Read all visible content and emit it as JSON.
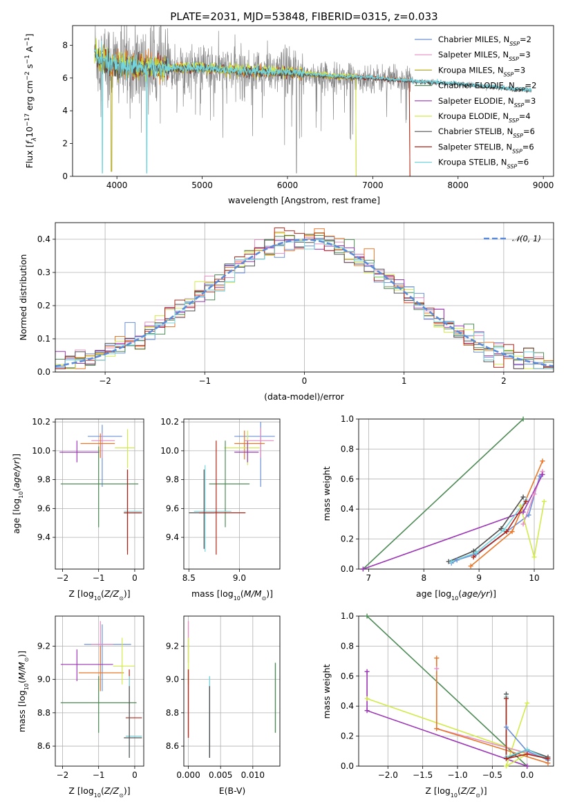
{
  "title": "PLATE=2031, MJD=53848, FIBERID=0315, z=0.033",
  "colors": {
    "chabrier_miles": "#6a8fd8",
    "salpeter_miles": "#e58cc0",
    "kroupa_miles": "#b5ac2a",
    "chabrier_elodie": "#4d8a55",
    "salpeter_elodie": "#9b34b5",
    "kroupa_elodie": "#d2ea4a",
    "chabrier_stelib": "#505050",
    "salpeter_stelib": "#b02418",
    "kroupa_stelib": "#74d4dd",
    "orange": "#e8772a",
    "gray": "#888888",
    "normal": "#5b8ad8",
    "grid": "#b0b0b0"
  },
  "legend": [
    {
      "key": "chabrier_miles",
      "base": "Chabrier MILES, N",
      "sub": "SSP",
      "val": "=2"
    },
    {
      "key": "salpeter_miles",
      "base": "Salpeter MILES, N",
      "sub": "SSP",
      "val": "=3"
    },
    {
      "key": "kroupa_miles",
      "base": "Kroupa MILES, N",
      "sub": "SSP",
      "val": "=3"
    },
    {
      "key": "chabrier_elodie",
      "base": "Chabrier ELODIE, N",
      "sub": "SSP",
      "val": "=2"
    },
    {
      "key": "salpeter_elodie",
      "base": "Salpeter ELODIE, N",
      "sub": "SSP",
      "val": "=3"
    },
    {
      "key": "kroupa_elodie",
      "base": "Kroupa ELODIE, N",
      "sub": "SSP",
      "val": "=4"
    },
    {
      "key": "chabrier_stelib",
      "base": "Chabrier STELIB, N",
      "sub": "SSP",
      "val": "=6"
    },
    {
      "key": "salpeter_stelib",
      "base": "Salpeter STELIB, N",
      "sub": "SSP",
      "val": "=6"
    },
    {
      "key": "kroupa_stelib",
      "base": "Kroupa STELIB, N",
      "sub": "SSP",
      "val": "=6"
    }
  ],
  "labels": {
    "spec_xlabel": "wavelength [Angstrom, rest frame]",
    "spec_ylabel_pre": "Flux [f",
    "spec_ylabel_post": "10",
    "hist_xlabel": "(data-model)/error",
    "hist_ylabel": "Normed distribution",
    "hist_legend": "𝒩(0, 1)",
    "age_label": "age  [log",
    "z_label": "Z [log",
    "mass_label": "mass [log",
    "mw_label": "mass weight",
    "ebv_label": "E(B-V)"
  },
  "chart_data": [
    {
      "type": "line",
      "name": "spectrum",
      "xlim": [
        3480,
        9120
      ],
      "ylim": [
        0,
        9.2
      ],
      "xticks": [
        4000,
        5000,
        6000,
        7000,
        8000,
        9000
      ],
      "yticks": [
        0,
        2,
        4,
        6,
        8
      ],
      "x_range": [
        3740,
        8860
      ],
      "continuum_y": [
        [
          3740,
          7.6
        ],
        [
          3800,
          7.1
        ],
        [
          3900,
          6.9
        ],
        [
          4000,
          6.8
        ],
        [
          4200,
          6.7
        ],
        [
          4500,
          6.6
        ],
        [
          5000,
          6.6
        ],
        [
          5500,
          6.4
        ],
        [
          6000,
          6.35
        ],
        [
          6500,
          6.1
        ],
        [
          7000,
          6.0
        ],
        [
          7500,
          5.8
        ],
        [
          8000,
          5.65
        ],
        [
          8500,
          5.4
        ],
        [
          8860,
          5.25
        ]
      ],
      "cutoffs": {
        "salpeter_stelib_end": 7430,
        "kroupa_miles_end": 6800,
        "orange_end": 7430,
        "gray_end": 7450
      }
    },
    {
      "type": "line",
      "name": "residual_histogram",
      "xlim": [
        -2.5,
        2.5
      ],
      "ylim": [
        0,
        0.45
      ],
      "xticks": [
        -2,
        -1,
        0,
        1,
        2
      ],
      "yticks": [
        0.0,
        0.1,
        0.2,
        0.3,
        0.4
      ],
      "bin_width": 0.1
    },
    {
      "type": "scatter",
      "name": "age_vs_Z",
      "xlim": [
        -2.2,
        0.25
      ],
      "ylim": [
        9.18,
        10.22
      ],
      "xticks": [
        -2,
        -1,
        0
      ],
      "yticks": [
        9.4,
        9.6,
        9.8,
        10.0,
        10.2
      ],
      "points": [
        {
          "c": "chabrier_miles",
          "x": -0.9,
          "y": 10.1,
          "xe": [
            -1.3,
            -0.35
          ],
          "ye": [
            9.75,
            10.18
          ]
        },
        {
          "c": "salpeter_miles",
          "x": -0.9,
          "y": 10.07,
          "xe": [
            -1.2,
            -0.55
          ],
          "ye": [
            9.95,
            10.12
          ]
        },
        {
          "c": "orange",
          "x": -0.95,
          "y": 10.05,
          "xe": [
            -1.5,
            -0.55
          ],
          "ye": [
            9.95,
            10.12
          ]
        },
        {
          "c": "kroupa_elodie",
          "x": -0.2,
          "y": 10.02,
          "xe": [
            -0.55,
            0.0
          ],
          "ye": [
            9.88,
            10.15
          ]
        },
        {
          "c": "salpeter_elodie",
          "x": -1.6,
          "y": 9.99,
          "xe": [
            -2.08,
            -0.98
          ],
          "ye": [
            9.92,
            10.07
          ]
        },
        {
          "c": "chabrier_elodie",
          "x": -1.0,
          "y": 9.77,
          "xe": [
            -2.05,
            0.1
          ],
          "ye": [
            9.47,
            10.03
          ]
        },
        {
          "c": "kroupa_stelib",
          "x": -0.2,
          "y": 9.58,
          "xe": [
            -0.3,
            0.2
          ],
          "ye": [
            9.3,
            9.86
          ]
        },
        {
          "c": "chabrier_stelib",
          "x": -0.2,
          "y": 9.57,
          "xe": [
            -0.3,
            0.2
          ],
          "ye": [
            9.31,
            9.87
          ]
        },
        {
          "c": "salpeter_stelib",
          "x": -0.2,
          "y": 9.57,
          "xe": [
            -0.3,
            0.2
          ],
          "ye": [
            9.28,
            9.87
          ]
        }
      ]
    },
    {
      "type": "scatter",
      "name": "age_vs_mass",
      "xlim": [
        8.45,
        9.4
      ],
      "ylim": [
        9.18,
        10.22
      ],
      "xticks": [
        8.5,
        9.0
      ],
      "yticks": [
        9.4,
        9.6,
        9.8,
        10.0,
        10.2
      ],
      "points": [
        {
          "c": "chabrier_miles",
          "x": 9.21,
          "y": 10.1,
          "xe": [
            8.95,
            9.35
          ],
          "ye": [
            9.75,
            10.2
          ]
        },
        {
          "c": "salpeter_miles",
          "x": 9.21,
          "y": 10.07,
          "xe": [
            9.05,
            9.34
          ],
          "ye": [
            9.95,
            10.16
          ]
        },
        {
          "c": "orange",
          "x": 9.05,
          "y": 10.05,
          "xe": [
            8.95,
            9.25
          ],
          "ye": [
            9.94,
            10.14
          ]
        },
        {
          "c": "kroupa_elodie",
          "x": 9.08,
          "y": 10.02,
          "xe": [
            8.85,
            9.2
          ],
          "ye": [
            9.9,
            10.14
          ]
        },
        {
          "c": "salpeter_elodie",
          "x": 9.08,
          "y": 9.99,
          "xe": [
            8.95,
            9.19
          ],
          "ye": [
            9.92,
            10.07
          ]
        },
        {
          "c": "chabrier_elodie",
          "x": 8.86,
          "y": 9.77,
          "xe": [
            8.7,
            9.1
          ],
          "ye": [
            9.47,
            10.07
          ]
        },
        {
          "c": "kroupa_stelib",
          "x": 8.66,
          "y": 9.58,
          "xe": [
            8.55,
            8.92
          ],
          "ye": [
            9.3,
            9.9
          ]
        },
        {
          "c": "chabrier_stelib",
          "x": 8.65,
          "y": 9.57,
          "xe": [
            8.5,
            8.75
          ],
          "ye": [
            9.32,
            9.87
          ]
        },
        {
          "c": "salpeter_stelib",
          "x": 8.77,
          "y": 9.57,
          "xe": [
            8.6,
            9.06
          ],
          "ye": [
            9.28,
            10.07
          ]
        }
      ]
    },
    {
      "type": "line",
      "name": "mass_weight_vs_age",
      "xlim": [
        6.82,
        10.35
      ],
      "ylim": [
        0,
        1
      ],
      "xticks": [
        7,
        8,
        9,
        10
      ],
      "yticks": [
        0.0,
        0.2,
        0.4,
        0.6,
        0.8,
        1.0
      ],
      "series": [
        {
          "c": "chabrier_miles",
          "x": [
            8.5,
            8.6,
            8.95,
            9.5,
            9.9,
            10.1
          ],
          "y": [
            0.04,
            0.06,
            0.1,
            0.25,
            0.36,
            0.62
          ]
        },
        {
          "c": "salpeter_miles",
          "x": [
            9.8,
            10.0,
            10.15
          ],
          "y": [
            0.3,
            0.5,
            0.65
          ]
        },
        {
          "c": "orange",
          "x": [
            8.85,
            9.6,
            10.15
          ],
          "y": [
            0.02,
            0.25,
            0.72
          ]
        },
        {
          "c": "chabrier_elodie",
          "x": [
            6.9,
            9.8
          ],
          "y": [
            0.0,
            1.0
          ]
        },
        {
          "c": "salpeter_elodie",
          "x": [
            6.9,
            9.8,
            10.15
          ],
          "y": [
            0.0,
            0.38,
            0.63
          ]
        },
        {
          "c": "kroupa_elodie",
          "x": [
            9.75,
            10.0,
            10.18
          ],
          "y": [
            0.42,
            0.08,
            0.45
          ]
        },
        {
          "c": "chabrier_stelib",
          "x": [
            8.45,
            8.9,
            9.4,
            9.8
          ],
          "y": [
            0.05,
            0.12,
            0.27,
            0.48
          ]
        },
        {
          "c": "kroupa_stelib",
          "x": [
            8.5,
            8.95,
            9.45,
            9.85
          ],
          "y": [
            0.05,
            0.11,
            0.26,
            0.46
          ]
        },
        {
          "c": "salpeter_stelib",
          "x": [
            8.9,
            9.5,
            9.85
          ],
          "y": [
            0.08,
            0.25,
            0.45
          ]
        }
      ]
    },
    {
      "type": "scatter",
      "name": "mass_vs_Z",
      "xlim": [
        -2.2,
        0.25
      ],
      "ylim": [
        8.48,
        9.38
      ],
      "xticks": [
        -2,
        -1,
        0
      ],
      "yticks": [
        8.6,
        8.8,
        9.0,
        9.2
      ],
      "points": [
        {
          "c": "chabrier_miles",
          "x": -0.9,
          "y": 9.21,
          "xe": [
            -1.4,
            -0.1
          ],
          "ye": [
            8.93,
            9.33
          ]
        },
        {
          "c": "salpeter_miles",
          "x": -0.95,
          "y": 9.21,
          "xe": [
            -1.2,
            -0.6
          ],
          "ye": [
            9.1,
            9.35
          ]
        },
        {
          "c": "orange",
          "x": -0.95,
          "y": 9.04,
          "xe": [
            -1.55,
            -0.3
          ],
          "ye": [
            8.93,
            9.2
          ]
        },
        {
          "c": "salpeter_elodie",
          "x": -1.6,
          "y": 9.09,
          "xe": [
            -2.05,
            -0.6
          ],
          "ye": [
            8.99,
            9.18
          ]
        },
        {
          "c": "kroupa_elodie",
          "x": -0.35,
          "y": 9.08,
          "xe": [
            -0.6,
            0.0
          ],
          "ye": [
            8.97,
            9.25
          ]
        },
        {
          "c": "chabrier_elodie",
          "x": -1.0,
          "y": 8.86,
          "xe": [
            -2.05,
            0.05
          ],
          "ye": [
            8.68,
            9.02
          ]
        },
        {
          "c": "salpeter_stelib",
          "x": -0.15,
          "y": 8.77,
          "xe": [
            -0.25,
            0.2
          ],
          "ye": [
            8.65,
            9.06
          ]
        },
        {
          "c": "kroupa_stelib",
          "x": -0.15,
          "y": 8.66,
          "xe": [
            -0.25,
            0.2
          ],
          "ye": [
            8.53,
            9.02
          ]
        },
        {
          "c": "chabrier_stelib",
          "x": -0.15,
          "y": 8.65,
          "xe": [
            -0.3,
            0.2
          ],
          "ye": [
            8.53,
            8.96
          ]
        }
      ]
    },
    {
      "type": "scatter",
      "name": "mass_vs_EBV",
      "xlim": [
        -0.0007,
        0.0142
      ],
      "ylim": [
        8.48,
        9.38
      ],
      "xticks": [
        0.0,
        0.005,
        0.01
      ],
      "tick_labels": [
        "0.000",
        "0.005",
        "0.010"
      ],
      "yticks": [
        8.6,
        8.8,
        9.0,
        9.2
      ],
      "vlines": [
        {
          "c": "salpeter_miles",
          "x": 0.0,
          "ye": [
            9.1,
            9.35
          ]
        },
        {
          "c": "kroupa_elodie",
          "x": 0.0,
          "ye": [
            8.97,
            9.25
          ]
        },
        {
          "c": "salpeter_stelib",
          "x": 0.0,
          "ye": [
            8.65,
            9.06
          ]
        },
        {
          "c": "kroupa_stelib",
          "x": 0.0033,
          "ye": [
            8.53,
            9.02
          ]
        },
        {
          "c": "chabrier_stelib",
          "x": 0.0033,
          "ye": [
            8.53,
            8.96
          ]
        },
        {
          "c": "chabrier_elodie",
          "x": 0.0135,
          "ye": [
            8.68,
            9.1
          ]
        }
      ]
    },
    {
      "type": "line",
      "name": "mass_weight_vs_Z",
      "xlim": [
        -2.42,
        0.38
      ],
      "ylim": [
        0,
        1
      ],
      "xticks": [
        -2.0,
        -1.5,
        -1.0,
        -0.5,
        0.0
      ],
      "tick_labels": [
        "−2.0",
        "−1.5",
        "−1.0",
        "−0.5",
        "0.0"
      ],
      "yticks": [
        0.0,
        0.2,
        0.4,
        0.6,
        0.8,
        1.0
      ],
      "series": [
        {
          "c": "chabrier_elodie",
          "x": [
            -2.3,
            0.0
          ],
          "y": [
            1.0,
            0.0
          ]
        },
        {
          "c": "salpeter_elodie",
          "x": [
            -2.3,
            -2.3,
            0.0
          ],
          "y": [
            0.63,
            0.37,
            0.0
          ]
        },
        {
          "c": "kroupa_elodie",
          "x": [
            -2.3,
            0.0,
            -0.3,
            0.0
          ],
          "y": [
            0.45,
            0.08,
            0.0,
            0.42
          ]
        },
        {
          "c": "salpeter_miles",
          "x": [
            -1.3,
            -1.3,
            0.3
          ],
          "y": [
            0.65,
            0.25,
            0.05
          ]
        },
        {
          "c": "orange",
          "x": [
            -1.3,
            -1.3,
            0.3
          ],
          "y": [
            0.72,
            0.25,
            0.02
          ]
        },
        {
          "c": "chabrier_miles",
          "x": [
            -0.3,
            0.0,
            0.3
          ],
          "y": [
            0.26,
            0.1,
            0.04
          ]
        },
        {
          "c": "chabrier_stelib",
          "x": [
            -0.3,
            -0.3,
            0.0,
            0.3
          ],
          "y": [
            0.48,
            0.05,
            0.11,
            0.06
          ]
        },
        {
          "c": "kroupa_stelib",
          "x": [
            -0.3,
            -0.3,
            0.0,
            0.3
          ],
          "y": [
            0.46,
            0.06,
            0.11,
            0.05
          ]
        },
        {
          "c": "salpeter_stelib",
          "x": [
            -0.3,
            -0.3,
            0.0,
            0.3
          ],
          "y": [
            0.45,
            0.05,
            0.08,
            0.05
          ]
        }
      ]
    }
  ]
}
